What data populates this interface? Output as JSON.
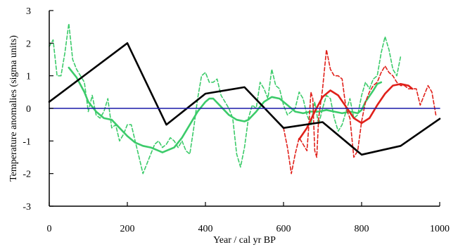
{
  "chart_data": {
    "type": "line",
    "xlabel": "Year / cal yr BP",
    "ylabel": "Temperature anomalies (sigma units)",
    "xlim": [
      0,
      1000
    ],
    "ylim": [
      -3,
      3
    ],
    "x_ticks": [
      0,
      200,
      400,
      600,
      800,
      1000
    ],
    "y_ticks": [
      -3,
      -2,
      -1,
      0,
      1,
      2,
      3
    ],
    "grid": false,
    "colors": {
      "green": "#3ccb6a",
      "red": "#e0201a",
      "black": "#000000",
      "blue": "#1a1aa8"
    },
    "series": [
      {
        "color": "#3ccb6a",
        "style": "dashed",
        "points": [
          [
            0,
            1.9
          ],
          [
            10,
            2.1
          ],
          [
            20,
            1.0
          ],
          [
            30,
            1.0
          ],
          [
            40,
            1.7
          ],
          [
            50,
            2.6
          ],
          [
            60,
            1.5
          ],
          [
            70,
            1.2
          ],
          [
            80,
            1.0
          ],
          [
            90,
            0.8
          ],
          [
            100,
            -0.1
          ],
          [
            110,
            0.4
          ],
          [
            120,
            -0.2
          ],
          [
            130,
            -0.3
          ],
          [
            140,
            -0.1
          ],
          [
            150,
            0.3
          ],
          [
            160,
            -0.6
          ],
          [
            170,
            -0.5
          ],
          [
            180,
            -1.0
          ],
          [
            190,
            -0.8
          ],
          [
            200,
            -0.5
          ],
          [
            210,
            -0.5
          ],
          [
            220,
            -1.0
          ],
          [
            230,
            -1.5
          ],
          [
            240,
            -2.0
          ],
          [
            250,
            -1.7
          ],
          [
            260,
            -1.4
          ],
          [
            270,
            -1.1
          ],
          [
            280,
            -1.0
          ],
          [
            290,
            -1.2
          ],
          [
            300,
            -1.1
          ],
          [
            310,
            -0.9
          ],
          [
            320,
            -1.0
          ],
          [
            330,
            -1.2
          ],
          [
            340,
            -1.0
          ],
          [
            350,
            -1.3
          ],
          [
            360,
            -1.4
          ],
          [
            370,
            -0.6
          ],
          [
            380,
            0.3
          ],
          [
            390,
            1.0
          ],
          [
            400,
            1.1
          ],
          [
            410,
            0.8
          ],
          [
            420,
            0.8
          ],
          [
            430,
            0.9
          ],
          [
            440,
            0.4
          ],
          [
            450,
            0.2
          ],
          [
            460,
            0.0
          ],
          [
            470,
            -0.3
          ],
          [
            480,
            -1.4
          ],
          [
            490,
            -1.8
          ],
          [
            500,
            -1.2
          ],
          [
            510,
            -0.3
          ],
          [
            520,
            0.1
          ],
          [
            530,
            0.0
          ],
          [
            540,
            0.8
          ],
          [
            550,
            0.6
          ],
          [
            560,
            0.3
          ],
          [
            570,
            1.2
          ],
          [
            580,
            0.7
          ],
          [
            590,
            0.6
          ],
          [
            600,
            0.1
          ],
          [
            610,
            -0.2
          ],
          [
            620,
            -0.1
          ],
          [
            630,
            0.0
          ],
          [
            640,
            0.5
          ],
          [
            650,
            0.3
          ],
          [
            660,
            -0.2
          ],
          [
            670,
            -0.5
          ],
          [
            680,
            0.2
          ],
          [
            690,
            -0.5
          ],
          [
            700,
            0.0
          ],
          [
            710,
            0.4
          ],
          [
            720,
            0.3
          ],
          [
            730,
            -0.3
          ],
          [
            740,
            -0.7
          ],
          [
            750,
            -0.5
          ],
          [
            760,
            -0.1
          ],
          [
            770,
            0.3
          ],
          [
            780,
            -0.3
          ],
          [
            790,
            -0.2
          ],
          [
            800,
            0.4
          ],
          [
            810,
            0.8
          ],
          [
            820,
            0.6
          ],
          [
            830,
            0.9
          ],
          [
            840,
            1.0
          ],
          [
            850,
            1.7
          ],
          [
            860,
            2.2
          ],
          [
            870,
            1.8
          ],
          [
            880,
            1.2
          ],
          [
            890,
            1.0
          ],
          [
            900,
            1.6
          ]
        ]
      },
      {
        "color": "#3ccb6a",
        "style": "solid",
        "points": [
          [
            50,
            1.25
          ],
          [
            70,
            0.95
          ],
          [
            90,
            0.5
          ],
          [
            100,
            0.2
          ],
          [
            120,
            -0.1
          ],
          [
            140,
            -0.3
          ],
          [
            160,
            -0.35
          ],
          [
            180,
            -0.6
          ],
          [
            200,
            -0.85
          ],
          [
            220,
            -1.05
          ],
          [
            240,
            -1.15
          ],
          [
            260,
            -1.2
          ],
          [
            280,
            -1.3
          ],
          [
            290,
            -1.35
          ],
          [
            300,
            -1.3
          ],
          [
            320,
            -1.2
          ],
          [
            340,
            -0.9
          ],
          [
            360,
            -0.5
          ],
          [
            380,
            -0.1
          ],
          [
            400,
            0.2
          ],
          [
            410,
            0.3
          ],
          [
            420,
            0.3
          ],
          [
            440,
            0.05
          ],
          [
            460,
            -0.2
          ],
          [
            480,
            -0.35
          ],
          [
            500,
            -0.4
          ],
          [
            510,
            -0.35
          ],
          [
            530,
            -0.1
          ],
          [
            550,
            0.2
          ],
          [
            570,
            0.35
          ],
          [
            590,
            0.3
          ],
          [
            610,
            0.1
          ],
          [
            630,
            -0.1
          ],
          [
            650,
            -0.15
          ],
          [
            670,
            -0.1
          ],
          [
            690,
            -0.1
          ],
          [
            710,
            -0.05
          ],
          [
            730,
            -0.1
          ],
          [
            750,
            -0.15
          ],
          [
            770,
            -0.1
          ],
          [
            790,
            -0.15
          ],
          [
            800,
            -0.05
          ],
          [
            810,
            0.2
          ],
          [
            830,
            0.55
          ],
          [
            840,
            0.75
          ],
          [
            850,
            0.8
          ]
        ]
      },
      {
        "color": "#e0201a",
        "style": "dashed",
        "points": [
          [
            600,
            -0.6
          ],
          [
            610,
            -1.2
          ],
          [
            620,
            -2.0
          ],
          [
            630,
            -1.4
          ],
          [
            640,
            -0.9
          ],
          [
            650,
            -1.1
          ],
          [
            660,
            -1.3
          ],
          [
            665,
            -0.5
          ],
          [
            670,
            0.5
          ],
          [
            675,
            0.3
          ],
          [
            680,
            -1.3
          ],
          [
            685,
            -1.5
          ],
          [
            690,
            -0.3
          ],
          [
            700,
            0.6
          ],
          [
            710,
            1.8
          ],
          [
            720,
            1.2
          ],
          [
            730,
            1.0
          ],
          [
            740,
            1.0
          ],
          [
            750,
            0.9
          ],
          [
            760,
            0.0
          ],
          [
            770,
            -0.3
          ],
          [
            780,
            -1.5
          ],
          [
            790,
            -1.3
          ],
          [
            800,
            -0.4
          ],
          [
            810,
            0.2
          ],
          [
            820,
            0.5
          ],
          [
            830,
            0.7
          ],
          [
            840,
            0.8
          ],
          [
            850,
            1.1
          ],
          [
            860,
            1.3
          ],
          [
            870,
            1.1
          ],
          [
            880,
            1.0
          ],
          [
            890,
            0.8
          ],
          [
            900,
            0.7
          ],
          [
            910,
            0.7
          ],
          [
            920,
            0.6
          ],
          [
            930,
            0.6
          ],
          [
            940,
            0.6
          ],
          [
            950,
            0.1
          ],
          [
            960,
            0.4
          ],
          [
            970,
            0.7
          ],
          [
            980,
            0.5
          ],
          [
            990,
            -0.2
          ]
        ]
      },
      {
        "color": "#e0201a",
        "style": "solid",
        "points": [
          [
            640,
            -0.95
          ],
          [
            660,
            -0.6
          ],
          [
            680,
            -0.1
          ],
          [
            700,
            0.35
          ],
          [
            720,
            0.55
          ],
          [
            740,
            0.4
          ],
          [
            760,
            0.05
          ],
          [
            780,
            -0.3
          ],
          [
            800,
            -0.45
          ],
          [
            820,
            -0.3
          ],
          [
            840,
            0.1
          ],
          [
            860,
            0.45
          ],
          [
            880,
            0.7
          ],
          [
            900,
            0.75
          ],
          [
            920,
            0.7
          ],
          [
            930,
            0.6
          ]
        ]
      },
      {
        "color": "#000000",
        "style": "solid",
        "points": [
          [
            0,
            0.2
          ],
          [
            100,
            1.1
          ],
          [
            200,
            2.0
          ],
          [
            300,
            -0.5
          ],
          [
            400,
            0.45
          ],
          [
            500,
            0.65
          ],
          [
            600,
            -0.6
          ],
          [
            700,
            -0.42
          ],
          [
            800,
            -1.42
          ],
          [
            900,
            -1.15
          ],
          [
            1000,
            -0.32
          ]
        ]
      },
      {
        "color": "#1a1aa8",
        "style": "solid",
        "points": [
          [
            0,
            0
          ],
          [
            1000,
            0
          ]
        ]
      }
    ]
  }
}
